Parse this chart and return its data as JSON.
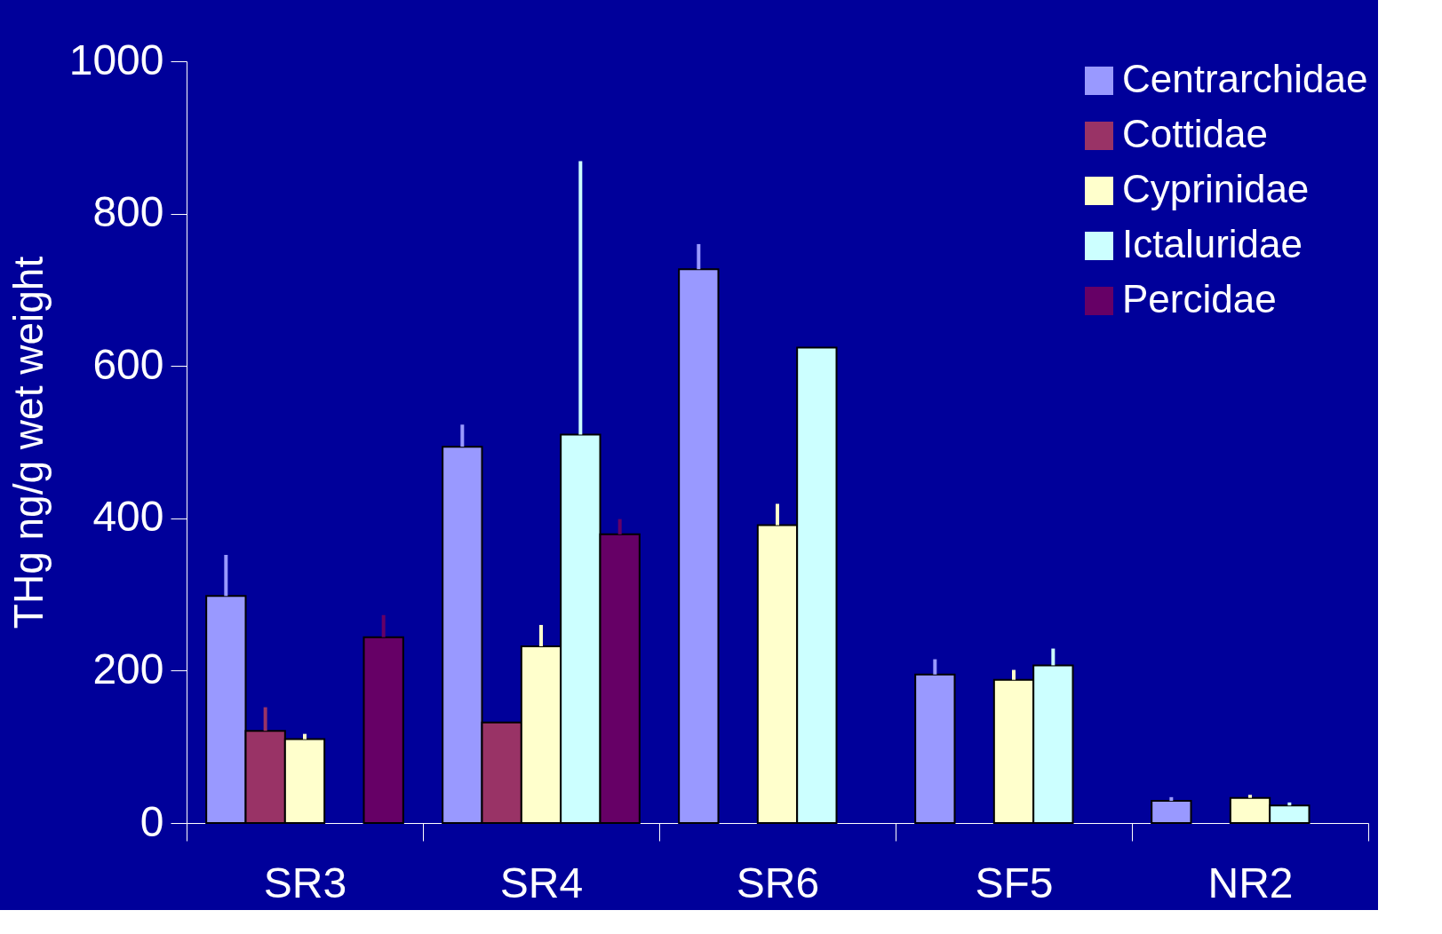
{
  "chart_data": {
    "type": "bar",
    "ylabel": "THg ng/g wet weight",
    "categories": [
      "SR3",
      "SR4",
      "SR6",
      "SF5",
      "NR2"
    ],
    "series": [
      {
        "name": "Centrarchidae",
        "color": "#9999ff",
        "values": [
          298,
          494,
          727,
          195,
          29
        ],
        "errors": [
          [
            298,
            352
          ],
          [
            494,
            523
          ],
          [
            727,
            760
          ],
          [
            195,
            215
          ],
          [
            29,
            34
          ]
        ]
      },
      {
        "name": "Cottidae",
        "color": "#993366",
        "values": [
          121,
          132,
          null,
          null,
          null
        ],
        "errors": [
          [
            121,
            152
          ],
          null,
          null,
          null,
          null
        ]
      },
      {
        "name": "Cyprinidae",
        "color": "#ffffcc",
        "values": [
          110,
          232,
          391,
          188,
          33
        ],
        "errors": [
          [
            110,
            117
          ],
          [
            232,
            260
          ],
          [
            391,
            419
          ],
          [
            188,
            201
          ],
          [
            33,
            37
          ]
        ]
      },
      {
        "name": "Ictaluridae",
        "color": "#ccffff",
        "values": [
          null,
          510,
          624,
          207,
          23
        ],
        "errors": [
          null,
          [
            510,
            869
          ],
          null,
          [
            207,
            229
          ],
          [
            23,
            27
          ]
        ]
      },
      {
        "name": "Percidae",
        "color": "#660066",
        "values": [
          244,
          379,
          null,
          null,
          null
        ],
        "errors": [
          [
            244,
            273
          ],
          [
            379,
            399
          ],
          null,
          null,
          null
        ]
      }
    ],
    "ylim": [
      0,
      1000
    ],
    "yticks": [
      0,
      200,
      400,
      600,
      800,
      1000
    ],
    "grid": false,
    "legend": "top right"
  }
}
